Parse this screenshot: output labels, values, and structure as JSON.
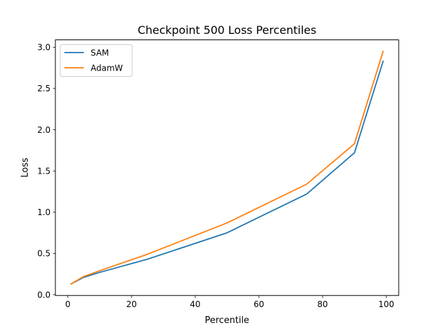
{
  "chart_data": {
    "type": "line",
    "title": "Checkpoint 500 Loss Percentiles",
    "xlabel": "Percentile",
    "ylabel": "Loss",
    "xlim": [
      -3.9,
      103.9
    ],
    "ylim": [
      -0.01,
      3.09
    ],
    "xticks": [
      0,
      20,
      40,
      60,
      80,
      100
    ],
    "xtick_labels": [
      "0",
      "20",
      "40",
      "60",
      "80",
      "100"
    ],
    "yticks": [
      0.0,
      0.5,
      1.0,
      1.5,
      2.0,
      2.5,
      3.0
    ],
    "ytick_labels": [
      "0.0",
      "0.5",
      "1.0",
      "1.5",
      "2.0",
      "2.5",
      "3.0"
    ],
    "grid": false,
    "legend_position": "upper left",
    "x": [
      1,
      5,
      10,
      25,
      50,
      75,
      90,
      99
    ],
    "series": [
      {
        "name": "SAM",
        "color": "#1f77b4",
        "values": [
          0.13,
          0.21,
          0.27,
          0.43,
          0.75,
          1.22,
          1.72,
          2.83
        ]
      },
      {
        "name": "AdamW",
        "color": "#ff7f0e",
        "values": [
          0.13,
          0.22,
          0.29,
          0.49,
          0.87,
          1.34,
          1.83,
          2.95
        ]
      }
    ]
  }
}
